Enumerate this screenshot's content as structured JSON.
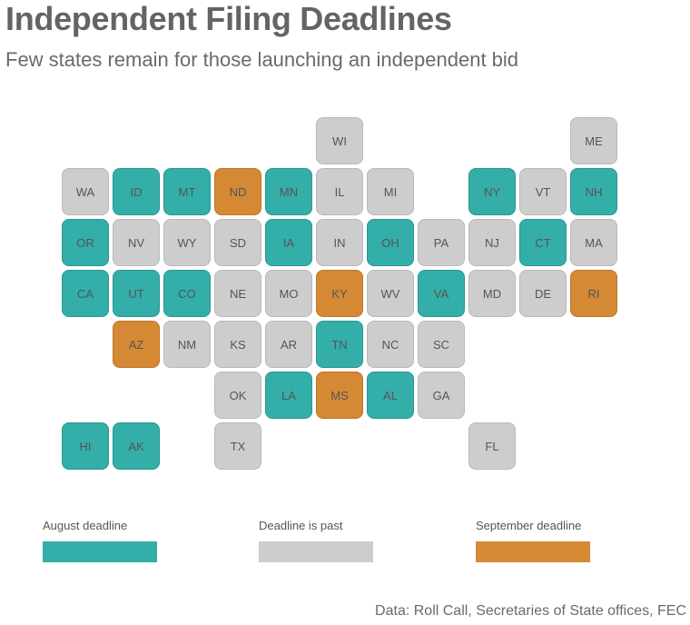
{
  "header": {
    "title": "Independent Filing Deadlines",
    "subtitle": "Few states remain for those launching an independent bid"
  },
  "colors": {
    "august": "#33aea8",
    "past": "#cdcdcd",
    "september": "#d58935"
  },
  "states": [
    {
      "abbr": "WI",
      "status": "past"
    },
    {
      "abbr": "ME",
      "status": "past"
    },
    {
      "abbr": "WA",
      "status": "past"
    },
    {
      "abbr": "ID",
      "status": "august"
    },
    {
      "abbr": "MT",
      "status": "august"
    },
    {
      "abbr": "ND",
      "status": "september"
    },
    {
      "abbr": "MN",
      "status": "august"
    },
    {
      "abbr": "IL",
      "status": "past"
    },
    {
      "abbr": "MI",
      "status": "past"
    },
    {
      "abbr": "NY",
      "status": "august"
    },
    {
      "abbr": "VT",
      "status": "past"
    },
    {
      "abbr": "NH",
      "status": "august"
    },
    {
      "abbr": "OR",
      "status": "august"
    },
    {
      "abbr": "NV",
      "status": "past"
    },
    {
      "abbr": "WY",
      "status": "past"
    },
    {
      "abbr": "SD",
      "status": "past"
    },
    {
      "abbr": "IA",
      "status": "august"
    },
    {
      "abbr": "IN",
      "status": "past"
    },
    {
      "abbr": "OH",
      "status": "august"
    },
    {
      "abbr": "PA",
      "status": "past"
    },
    {
      "abbr": "NJ",
      "status": "past"
    },
    {
      "abbr": "CT",
      "status": "august"
    },
    {
      "abbr": "MA",
      "status": "past"
    },
    {
      "abbr": "CA",
      "status": "august"
    },
    {
      "abbr": "UT",
      "status": "august"
    },
    {
      "abbr": "CO",
      "status": "august"
    },
    {
      "abbr": "NE",
      "status": "past"
    },
    {
      "abbr": "MO",
      "status": "past"
    },
    {
      "abbr": "KY",
      "status": "september"
    },
    {
      "abbr": "WV",
      "status": "past"
    },
    {
      "abbr": "VA",
      "status": "august"
    },
    {
      "abbr": "MD",
      "status": "past"
    },
    {
      "abbr": "DE",
      "status": "past"
    },
    {
      "abbr": "RI",
      "status": "september"
    },
    {
      "abbr": "AZ",
      "status": "september"
    },
    {
      "abbr": "NM",
      "status": "past"
    },
    {
      "abbr": "KS",
      "status": "past"
    },
    {
      "abbr": "AR",
      "status": "past"
    },
    {
      "abbr": "TN",
      "status": "august"
    },
    {
      "abbr": "NC",
      "status": "past"
    },
    {
      "abbr": "SC",
      "status": "past"
    },
    {
      "abbr": "OK",
      "status": "past"
    },
    {
      "abbr": "LA",
      "status": "august"
    },
    {
      "abbr": "MS",
      "status": "september"
    },
    {
      "abbr": "AL",
      "status": "august"
    },
    {
      "abbr": "GA",
      "status": "past"
    },
    {
      "abbr": "HI",
      "status": "august"
    },
    {
      "abbr": "AK",
      "status": "august"
    },
    {
      "abbr": "TX",
      "status": "past"
    },
    {
      "abbr": "FL",
      "status": "past"
    }
  ],
  "legend": {
    "august": "August deadline",
    "past": "Deadline is past",
    "september": "September deadline"
  },
  "source": "Data: Roll Call, Secretaries of State offices, FEC"
}
